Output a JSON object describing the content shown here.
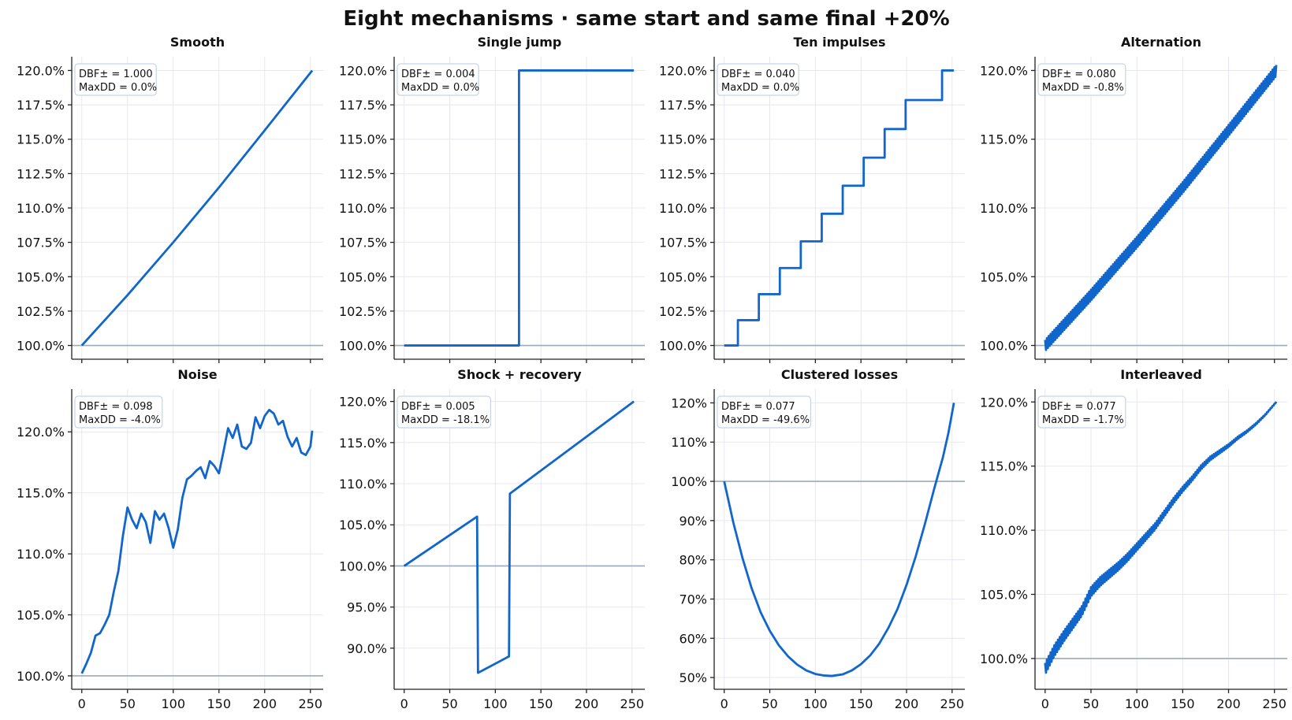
{
  "figure": {
    "title": "Eight mechanisms · same start and same final +20%"
  },
  "colors": {
    "series": "#1166cc",
    "baseline": "#9aaabb",
    "grid": "#e6e8ee"
  },
  "chart_data": [
    {
      "type": "line",
      "title": "Smooth",
      "x_ticks": [
        0,
        50,
        100,
        150,
        200,
        250
      ],
      "xlim": [
        -11,
        264
      ],
      "y_ticks": [
        100.0,
        102.5,
        105.0,
        107.5,
        110.0,
        112.5,
        115.0,
        117.5,
        120.0
      ],
      "y_tick_labels": [
        "100.0%",
        "102.5%",
        "105.0%",
        "107.5%",
        "110.0%",
        "112.5%",
        "115.0%",
        "117.5%",
        "120.0%"
      ],
      "ylim": [
        99.0,
        121.0
      ],
      "baseline": 100,
      "annotation": [
        "DBF± = 1.000",
        "MaxDD = 0.0%"
      ],
      "series": [
        {
          "x": [
            0,
            50,
            100,
            150,
            200,
            252
          ],
          "y": [
            100.0,
            103.66,
            107.5,
            111.49,
            115.64,
            120.0
          ]
        }
      ],
      "grid": true
    },
    {
      "type": "line",
      "title": "Single jump",
      "x_ticks": [
        0,
        50,
        100,
        150,
        200,
        250
      ],
      "xlim": [
        -11,
        264
      ],
      "y_ticks": [
        100.0,
        102.5,
        105.0,
        107.5,
        110.0,
        112.5,
        115.0,
        117.5,
        120.0
      ],
      "y_tick_labels": [
        "100.0%",
        "102.5%",
        "105.0%",
        "107.5%",
        "110.0%",
        "112.5%",
        "115.0%",
        "117.5%",
        "120.0%"
      ],
      "ylim": [
        99.0,
        121.0
      ],
      "baseline": 100,
      "annotation": [
        "DBF± = 0.004",
        "MaxDD = 0.0%"
      ],
      "series": [
        {
          "x": [
            0,
            126,
            126,
            252
          ],
          "y": [
            100.0,
            100.0,
            120.0,
            120.0
          ]
        }
      ],
      "grid": true
    },
    {
      "type": "line",
      "title": "Ten impulses",
      "x_ticks": [
        0,
        50,
        100,
        150,
        200,
        250
      ],
      "xlim": [
        -11,
        264
      ],
      "y_ticks": [
        100.0,
        102.5,
        105.0,
        107.5,
        110.0,
        112.5,
        115.0,
        117.5,
        120.0
      ],
      "y_tick_labels": [
        "100.0%",
        "102.5%",
        "105.0%",
        "107.5%",
        "110.0%",
        "112.5%",
        "115.0%",
        "117.5%",
        "120.0%"
      ],
      "ylim": [
        99.0,
        121.0
      ],
      "baseline": 100,
      "annotation": [
        "DBF± = 0.040",
        "MaxDD = 0.0%"
      ],
      "series": [
        {
          "x": [
            0,
            15,
            15,
            38,
            38,
            61,
            61,
            84,
            84,
            107,
            107,
            130,
            130,
            153,
            153,
            176,
            176,
            199,
            199,
            222,
            222,
            239,
            239,
            252
          ],
          "y": [
            100.0,
            100.0,
            101.84,
            101.84,
            103.73,
            103.73,
            105.63,
            105.63,
            107.57,
            107.57,
            109.58,
            109.58,
            111.62,
            111.62,
            113.66,
            113.66,
            115.74,
            115.74,
            117.85,
            117.85,
            117.85,
            117.85,
            120.0,
            120.0
          ]
        }
      ],
      "grid": true
    },
    {
      "type": "line",
      "title": "Alternation",
      "x_ticks": [
        0,
        50,
        100,
        150,
        200,
        250
      ],
      "xlim": [
        -11,
        264
      ],
      "y_ticks": [
        100.0,
        105.0,
        110.0,
        115.0,
        120.0
      ],
      "y_tick_labels": [
        "100.0%",
        "105.0%",
        "110.0%",
        "115.0%",
        "120.0%"
      ],
      "ylim": [
        99.0,
        121.0
      ],
      "baseline": 100,
      "annotation": [
        "DBF± = 0.080",
        "MaxDD = -0.8%"
      ],
      "series": [
        {
          "x": [
            0,
            50,
            100,
            150,
            200,
            252
          ],
          "y": [
            100.0,
            103.66,
            107.5,
            111.49,
            115.64,
            120.0
          ],
          "alternation_amplitude": 0.8
        }
      ],
      "grid": true
    },
    {
      "type": "line",
      "title": "Noise",
      "x_ticks": [
        0,
        50,
        100,
        150,
        200,
        250
      ],
      "xlim": [
        -11,
        264
      ],
      "y_ticks": [
        100.0,
        105.0,
        110.0,
        115.0,
        120.0
      ],
      "y_tick_labels": [
        "100.0%",
        "105.0%",
        "110.0%",
        "115.0%",
        "120.0%"
      ],
      "ylim": [
        98.9,
        123.5
      ],
      "baseline": 100,
      "annotation": [
        "DBF± = 0.098",
        "MaxDD = -4.0%"
      ],
      "series": [
        {
          "x": [
            0,
            5,
            10,
            15,
            20,
            25,
            30,
            35,
            40,
            45,
            50,
            55,
            60,
            65,
            70,
            75,
            80,
            85,
            90,
            95,
            100,
            105,
            110,
            115,
            120,
            125,
            130,
            135,
            140,
            145,
            150,
            155,
            160,
            165,
            170,
            175,
            180,
            185,
            190,
            195,
            200,
            205,
            210,
            215,
            220,
            225,
            230,
            235,
            240,
            245,
            250,
            252
          ],
          "y": [
            100.2,
            101.0,
            101.9,
            103.3,
            103.5,
            104.2,
            105.0,
            106.9,
            108.6,
            111.5,
            113.8,
            112.8,
            112.1,
            113.3,
            112.6,
            110.9,
            113.5,
            112.8,
            113.3,
            112.1,
            110.5,
            112.0,
            114.6,
            116.1,
            116.4,
            116.8,
            117.1,
            116.2,
            117.6,
            117.2,
            116.6,
            118.4,
            120.3,
            119.5,
            120.6,
            118.8,
            118.6,
            119.1,
            121.2,
            120.3,
            121.3,
            121.8,
            121.5,
            120.6,
            120.9,
            119.6,
            118.8,
            119.5,
            118.3,
            118.1,
            118.8,
            120.1
          ]
        }
      ],
      "grid": true
    },
    {
      "type": "line",
      "title": "Shock + recovery",
      "x_ticks": [
        0,
        50,
        100,
        150,
        200,
        250
      ],
      "xlim": [
        -11,
        264
      ],
      "y_ticks": [
        90.0,
        95.0,
        100.0,
        105.0,
        110.0,
        115.0,
        120.0
      ],
      "y_tick_labels": [
        "90.0%",
        "95.0%",
        "100.0%",
        "105.0%",
        "110.0%",
        "115.0%",
        "120.0%"
      ],
      "ylim": [
        85.0,
        121.5
      ],
      "baseline": 100,
      "annotation": [
        "DBF± = 0.005",
        "MaxDD = -18.1%"
      ],
      "series": [
        {
          "x": [
            0,
            80,
            81,
            115,
            116,
            252
          ],
          "y": [
            100.0,
            106.0,
            87.0,
            89.0,
            108.8,
            120.0
          ]
        }
      ],
      "grid": true
    },
    {
      "type": "line",
      "title": "Clustered losses",
      "x_ticks": [
        0,
        50,
        100,
        150,
        200,
        250
      ],
      "xlim": [
        -11,
        264
      ],
      "y_ticks": [
        50,
        60,
        70,
        80,
        90,
        100,
        110,
        120
      ],
      "y_tick_labels": [
        "50%",
        "60%",
        "70%",
        "80%",
        "90%",
        "100%",
        "110%",
        "120%"
      ],
      "ylim": [
        47.0,
        123.5
      ],
      "baseline": 100,
      "annotation": [
        "DBF± = 0.077",
        "MaxDD = -49.6%"
      ],
      "series": [
        {
          "x": [
            0,
            10,
            20,
            30,
            40,
            50,
            60,
            70,
            80,
            90,
            100,
            110,
            118,
            130,
            140,
            150,
            160,
            170,
            180,
            190,
            200,
            210,
            220,
            230,
            240,
            246,
            252
          ],
          "y": [
            100.0,
            89.5,
            80.5,
            72.8,
            66.6,
            61.9,
            58.2,
            55.4,
            53.3,
            51.8,
            50.9,
            50.5,
            50.4,
            50.8,
            51.8,
            53.4,
            55.6,
            58.6,
            62.6,
            67.4,
            73.6,
            80.8,
            89.0,
            97.8,
            106.2,
            112.4,
            120.0
          ]
        }
      ],
      "grid": true
    },
    {
      "type": "line",
      "title": "Interleaved",
      "x_ticks": [
        0,
        50,
        100,
        150,
        200,
        250
      ],
      "xlim": [
        -11,
        264
      ],
      "y_ticks": [
        100.0,
        105.0,
        110.0,
        115.0,
        120.0
      ],
      "y_tick_labels": [
        "100.0%",
        "105.0%",
        "110.0%",
        "115.0%",
        "120.0%"
      ],
      "ylim": [
        97.6,
        121.0
      ],
      "baseline": 100,
      "annotation": [
        "DBF± = 0.077",
        "MaxDD = -1.7%"
      ],
      "series": [
        {
          "x": [
            0,
            10,
            20,
            30,
            40,
            50,
            60,
            70,
            80,
            90,
            100,
            110,
            120,
            130,
            140,
            150,
            160,
            170,
            180,
            190,
            200,
            210,
            220,
            230,
            240,
            252
          ],
          "y": [
            99.2,
            100.6,
            101.7,
            102.7,
            103.7,
            105.2,
            106.0,
            106.6,
            107.2,
            107.9,
            108.7,
            109.5,
            110.3,
            111.3,
            112.3,
            113.2,
            114.0,
            114.9,
            115.6,
            116.1,
            116.6,
            117.2,
            117.7,
            118.3,
            119.0,
            120.0
          ],
          "alternation_amplitude_start": 0.9,
          "alternation_amplitude_end": 0.05
        }
      ],
      "grid": true
    }
  ]
}
